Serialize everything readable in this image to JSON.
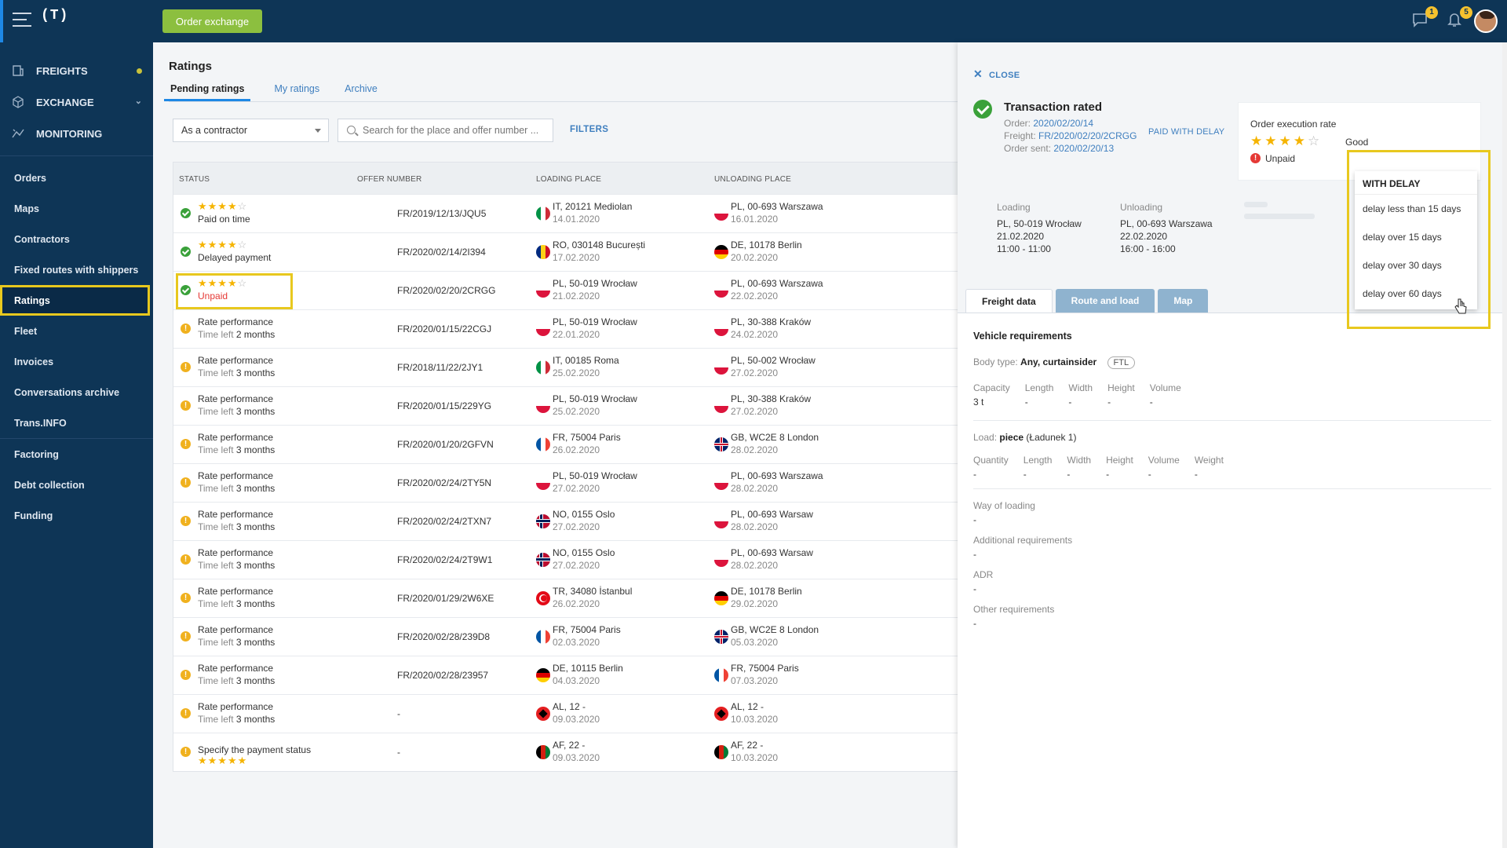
{
  "topbar": {
    "logo": "(T)",
    "order_exchange": "Order exchange",
    "messages_count": "1",
    "notifications_count": "5"
  },
  "sidebar": {
    "main_items": [
      {
        "label": "FREIGHTS",
        "icon": "freights-icon"
      },
      {
        "label": "EXCHANGE",
        "icon": "exchange-icon"
      },
      {
        "label": "MONITORING",
        "icon": "monitoring-icon"
      }
    ],
    "sub_items": [
      {
        "label": "Orders"
      },
      {
        "label": "Maps"
      },
      {
        "label": "Contractors"
      },
      {
        "label": "Fixed routes with shippers"
      },
      {
        "label": "Ratings"
      },
      {
        "label": "Fleet"
      },
      {
        "label": "Invoices"
      },
      {
        "label": "Conversations archive"
      },
      {
        "label": "Trans.INFO"
      },
      {
        "label": "Factoring"
      },
      {
        "label": "Debt collection"
      },
      {
        "label": "Funding"
      }
    ]
  },
  "main": {
    "title": "Ratings",
    "tabs": [
      {
        "label": "Pending ratings"
      },
      {
        "label": "My ratings"
      },
      {
        "label": "Archive"
      }
    ],
    "role_select": "As a contractor",
    "search_placeholder": "Search for the place and offer number ...",
    "filters": "FILTERS",
    "columns": {
      "status": "STATUS",
      "offer": "OFFER NUMBER",
      "loading": "LOADING PLACE",
      "unloading": "UNLOADING PLACE"
    },
    "rows": [
      {
        "icon": "ok",
        "stars": 4,
        "title": "Paid on time",
        "sub": "",
        "sub_prefix": "",
        "offer": "FR/2019/12/13/JQU5",
        "load_flag": "IT",
        "load": "IT, 20121 Mediolan",
        "load_date": "14.01.2020",
        "unload_flag": "PL",
        "unload": "PL, 00-693 Warszawa",
        "unload_date": "16.01.2020"
      },
      {
        "icon": "ok",
        "stars": 4,
        "title": "Delayed payment",
        "sub": "",
        "sub_prefix": "",
        "offer": "FR/2020/02/14/2I394",
        "load_flag": "RO",
        "load": "RO, 030148 București",
        "load_date": "17.02.2020",
        "unload_flag": "DE",
        "unload": "DE, 10178 Berlin",
        "unload_date": "20.02.2020"
      },
      {
        "icon": "ok",
        "stars": 4,
        "title": "Unpaid",
        "sub": "",
        "sub_prefix": "",
        "red": true,
        "highlight": true,
        "offer": "FR/2020/02/20/2CRGG",
        "load_flag": "PL",
        "load": "PL, 50-019 Wrocław",
        "load_date": "21.02.2020",
        "unload_flag": "PL",
        "unload": "PL, 00-693 Warszawa",
        "unload_date": "22.02.2020"
      },
      {
        "icon": "warn",
        "stars": 0,
        "title": "Rate performance",
        "sub_prefix": "Time left",
        "sub": "2 months",
        "offer": "FR/2020/01/15/22CGJ",
        "load_flag": "PL",
        "load": "PL, 50-019 Wrocław",
        "load_date": "22.01.2020",
        "unload_flag": "PL",
        "unload": "PL, 30-388 Kraków",
        "unload_date": "24.02.2020"
      },
      {
        "icon": "warn",
        "stars": 0,
        "title": "Rate performance",
        "sub_prefix": "Time left",
        "sub": "3 months",
        "offer": "FR/2018/11/22/2JY1",
        "load_flag": "IT",
        "load": "IT, 00185 Roma",
        "load_date": "25.02.2020",
        "unload_flag": "PL",
        "unload": "PL, 50-002 Wrocław",
        "unload_date": "27.02.2020"
      },
      {
        "icon": "warn",
        "stars": 0,
        "title": "Rate performance",
        "sub_prefix": "Time left",
        "sub": "3 months",
        "offer": "FR/2020/01/15/229YG",
        "load_flag": "PL",
        "load": "PL, 50-019 Wrocław",
        "load_date": "25.02.2020",
        "unload_flag": "PL",
        "unload": "PL, 30-388 Kraków",
        "unload_date": "27.02.2020"
      },
      {
        "icon": "warn",
        "stars": 0,
        "title": "Rate performance",
        "sub_prefix": "Time left",
        "sub": "3 months",
        "offer": "FR/2020/01/20/2GFVN",
        "load_flag": "FR",
        "load": "FR, 75004 Paris",
        "load_date": "26.02.2020",
        "unload_flag": "GB",
        "unload": "GB, WC2E 8 London",
        "unload_date": "28.02.2020"
      },
      {
        "icon": "warn",
        "stars": 0,
        "title": "Rate performance",
        "sub_prefix": "Time left",
        "sub": "3 months",
        "offer": "FR/2020/02/24/2TY5N",
        "load_flag": "PL",
        "load": "PL, 50-019 Wrocław",
        "load_date": "27.02.2020",
        "unload_flag": "PL",
        "unload": "PL, 00-693 Warszawa",
        "unload_date": "28.02.2020"
      },
      {
        "icon": "warn",
        "stars": 0,
        "title": "Rate performance",
        "sub_prefix": "Time left",
        "sub": "3 months",
        "offer": "FR/2020/02/24/2TXN7",
        "load_flag": "NO",
        "load": "NO, 0155 Oslo",
        "load_date": "27.02.2020",
        "unload_flag": "PL",
        "unload": "PL, 00-693 Warsaw",
        "unload_date": "28.02.2020"
      },
      {
        "icon": "warn",
        "stars": 0,
        "title": "Rate performance",
        "sub_prefix": "Time left",
        "sub": "3 months",
        "offer": "FR/2020/02/24/2T9W1",
        "load_flag": "NO",
        "load": "NO, 0155 Oslo",
        "load_date": "27.02.2020",
        "unload_flag": "PL",
        "unload": "PL, 00-693 Warsaw",
        "unload_date": "28.02.2020"
      },
      {
        "icon": "warn",
        "stars": 0,
        "title": "Rate performance",
        "sub_prefix": "Time left",
        "sub": "3 months",
        "offer": "FR/2020/01/29/2W6XE",
        "load_flag": "TR",
        "load": "TR, 34080 İstanbul",
        "load_date": "26.02.2020",
        "unload_flag": "DE",
        "unload": "DE, 10178 Berlin",
        "unload_date": "29.02.2020"
      },
      {
        "icon": "warn",
        "stars": 0,
        "title": "Rate performance",
        "sub_prefix": "Time left",
        "sub": "3 months",
        "offer": "FR/2020/02/28/239D8",
        "load_flag": "FR",
        "load": "FR, 75004 Paris",
        "load_date": "02.03.2020",
        "unload_flag": "GB",
        "unload": "GB, WC2E 8 London",
        "unload_date": "05.03.2020"
      },
      {
        "icon": "warn",
        "stars": 0,
        "title": "Rate performance",
        "sub_prefix": "Time left",
        "sub": "3 months",
        "offer": "FR/2020/02/28/23957",
        "load_flag": "DE",
        "load": "DE, 10115 Berlin",
        "load_date": "04.03.2020",
        "unload_flag": "FR",
        "unload": "FR, 75004 Paris",
        "unload_date": "07.03.2020"
      },
      {
        "icon": "warn",
        "stars": 0,
        "title": "Rate performance",
        "sub_prefix": "Time left",
        "sub": "3 months",
        "offer": "-",
        "load_flag": "AL",
        "load": "AL, 12 -",
        "load_date": "09.03.2020",
        "unload_flag": "AL",
        "unload": "AL, 12 -",
        "unload_date": "10.03.2020"
      },
      {
        "icon": "warn",
        "stars": 5,
        "title": "Specify the payment status",
        "sub_prefix": "",
        "sub": "",
        "stars_below": true,
        "offer": "-",
        "load_flag": "AF",
        "load": "AF, 22 -",
        "load_date": "09.03.2020",
        "unload_flag": "AF",
        "unload": "AF, 22 -",
        "unload_date": "10.03.2020"
      }
    ]
  },
  "panel": {
    "close": "CLOSE",
    "title": "Transaction rated",
    "order_label": "Order:",
    "order_value": "2020/02/20/14",
    "freight_label": "Freight:",
    "freight_value": "FR/2020/02/20/2CRGG",
    "sent_label": "Order sent:",
    "sent_value": "2020/02/20/13",
    "rate_label": "Order execution rate",
    "rate_stars": 4,
    "rate_text": "Good",
    "unpaid": "Unpaid",
    "paid_with_delay": "PAID WITH DELAY",
    "loading_label": "Loading",
    "loading_place": "PL, 50-019 Wrocław",
    "loading_date": "21.02.2020",
    "loading_time": "11:00 - 11:00",
    "unloading_label": "Unloading",
    "unloading_place": "PL, 00-693 Warszawa",
    "unloading_date": "22.02.2020",
    "unloading_time": "16:00 - 16:00",
    "dropdown": {
      "header": "WITH DELAY",
      "items": [
        "delay less than 15 days",
        "delay over 15 days",
        "delay over 30 days",
        "delay over 60 days"
      ]
    },
    "tabs": [
      "Freight data",
      "Route and load",
      "Map"
    ],
    "vehicle_title": "Vehicle requirements",
    "body_type_label": "Body type:",
    "body_type_value": "Any, curtainsider",
    "ftl": "FTL",
    "vehicle_cols": [
      {
        "k": "Capacity",
        "v": "3 t"
      },
      {
        "k": "Length",
        "v": "-"
      },
      {
        "k": "Width",
        "v": "-"
      },
      {
        "k": "Height",
        "v": "-"
      },
      {
        "k": "Volume",
        "v": "-"
      }
    ],
    "load_label": "Load:",
    "load_value": "piece",
    "load_note": "(Ładunek 1)",
    "load_cols": [
      {
        "k": "Quantity",
        "v": "-"
      },
      {
        "k": "Length",
        "v": "-"
      },
      {
        "k": "Width",
        "v": "-"
      },
      {
        "k": "Height",
        "v": "-"
      },
      {
        "k": "Volume",
        "v": "-"
      },
      {
        "k": "Weight",
        "v": "-"
      }
    ],
    "extra": [
      {
        "k": "Way of loading",
        "v": "-"
      },
      {
        "k": "Additional requirements",
        "v": "-"
      },
      {
        "k": "ADR",
        "v": "-"
      },
      {
        "k": "Other requirements",
        "v": "-"
      }
    ]
  },
  "colors": {
    "navy": "#0e3556",
    "accent_green": "#8cbf3f",
    "highlight": "#e8c81e",
    "link": "#3f7fbf",
    "star": "#f5b400"
  }
}
